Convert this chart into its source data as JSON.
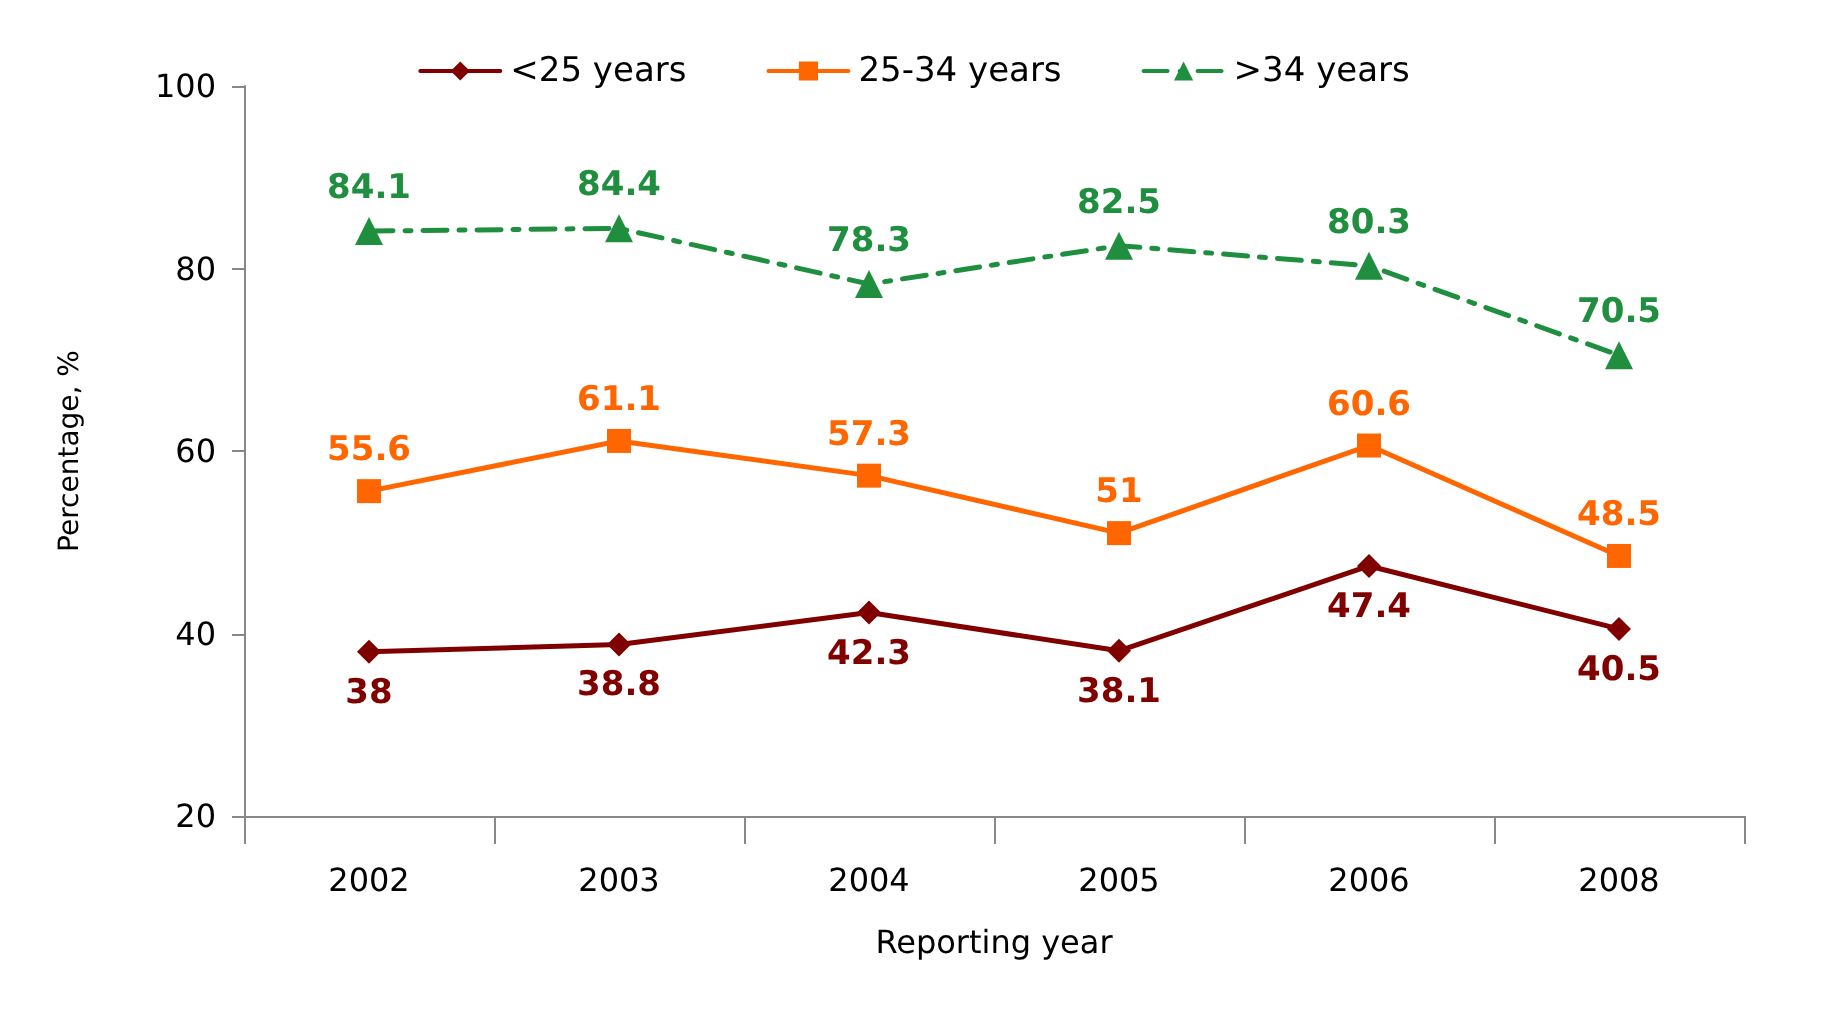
{
  "chart_data": {
    "type": "line",
    "xlabel": "Reporting year",
    "ylabel": "Percentage, %",
    "categories": [
      "2002",
      "2003",
      "2004",
      "2005",
      "2006",
      "2008"
    ],
    "series": [
      {
        "name": "<25 years",
        "color": "#800000",
        "marker": "diamond",
        "line_style": "solid",
        "values": [
          38,
          38.8,
          42.3,
          38.1,
          47.4,
          40.5
        ]
      },
      {
        "name": "25-34 years",
        "color": "#ff6600",
        "marker": "square",
        "line_style": "solid",
        "values": [
          55.6,
          61.1,
          57.3,
          51,
          60.6,
          48.5
        ]
      },
      {
        "name": ">34 years",
        "color": "#1f8f3f",
        "marker": "triangle",
        "line_style": "dashed",
        "values": [
          84.1,
          84.4,
          78.3,
          82.5,
          80.3,
          70.5
        ]
      }
    ],
    "ylim": [
      20,
      100
    ],
    "yticks": [
      20,
      40,
      60,
      80,
      100
    ],
    "grid": false,
    "legend": "top",
    "data_labels": true
  }
}
